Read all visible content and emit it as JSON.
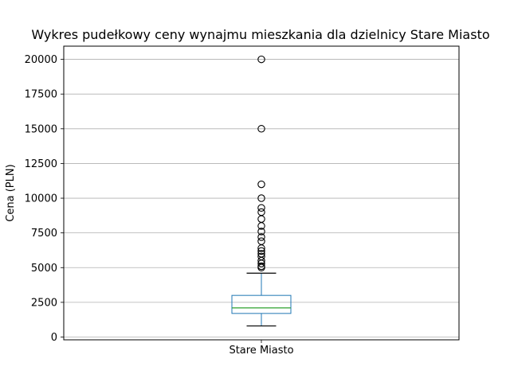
{
  "chart_data": {
    "type": "box",
    "title": "Wykres pudełkowy ceny wynajmu mieszkania dla dzielnicy  Stare Miasto",
    "xlabel": "",
    "ylabel": "Cena (PLN)",
    "categories": [
      "Stare Miasto"
    ],
    "ylim": [
      -200,
      20950
    ],
    "yticks": [
      0,
      2500,
      5000,
      7500,
      10000,
      12500,
      15000,
      17500,
      20000
    ],
    "grid": true,
    "boxes": [
      {
        "name": "Stare Miasto",
        "whisker_low": 800,
        "q1": 1700,
        "median": 2100,
        "q3": 3000,
        "whisker_high": 4600,
        "outliers": [
          5000,
          5100,
          5300,
          5500,
          5800,
          6000,
          6200,
          6400,
          6900,
          7200,
          7600,
          8000,
          8500,
          9000,
          9300,
          10000,
          11000,
          15000,
          20000
        ]
      }
    ],
    "colors": {
      "box": "#1f77b4",
      "median": "#2ca02c",
      "whisker": "#1f77b4",
      "cap": "#000000",
      "outlier": "#000000",
      "grid": "#b0b0b0"
    }
  }
}
